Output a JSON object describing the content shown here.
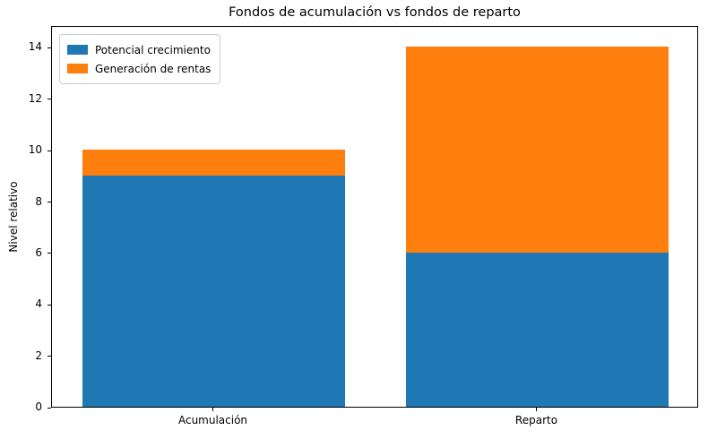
{
  "chart_data": {
    "type": "bar",
    "stacked": true,
    "title": "Fondos de acumulación vs fondos de reparto",
    "xlabel": "",
    "ylabel": "Nivel relativo",
    "categories": [
      "Acumulación",
      "Reparto"
    ],
    "series": [
      {
        "name": "Potencial crecimiento",
        "color": "#1f77b4",
        "values": [
          9,
          6
        ]
      },
      {
        "name": "Generación de rentas",
        "color": "#ff7f0e",
        "values": [
          1,
          8
        ]
      }
    ],
    "totals": [
      10,
      14
    ],
    "yticks": [
      0,
      2,
      4,
      6,
      8,
      10,
      12,
      14
    ],
    "ylim": [
      0,
      14.85
    ],
    "bar_width_fraction": 0.81,
    "legend_position": "upper left",
    "grid": false,
    "background_color": "#ffffff",
    "spine_color": "#000000"
  }
}
